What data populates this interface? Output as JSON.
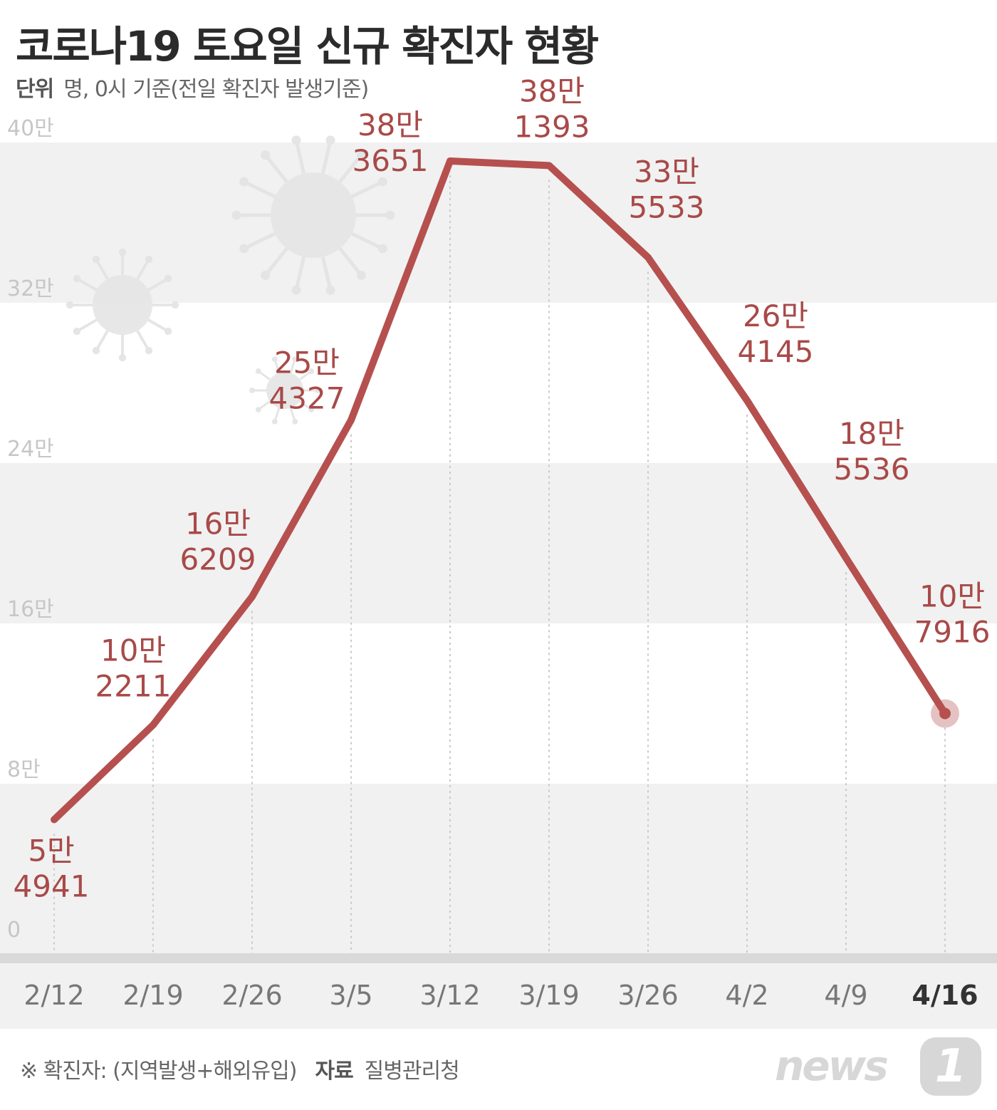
{
  "title": "코로나19 토요일 신규 확진자 현황",
  "unit_label": "단위",
  "unit_text": "명, 0시 기준(전일 확진자 발생기준)",
  "footer_note": "※ 확진자: (지역발생+해외유입)",
  "source_label": "자료",
  "source_text": "질병관리청",
  "logo": {
    "text": "news",
    "one": "1"
  },
  "colors": {
    "line": "#b5504f",
    "label": "#a84a48",
    "band": "#f1f1f1",
    "axis_bar": "#d9d9d9",
    "highlight": "#333333"
  },
  "chart_data": {
    "type": "line",
    "title": "코로나19 토요일 신규 확진자 현황",
    "xlabel": "",
    "ylabel": "",
    "categories": [
      "2/12",
      "2/19",
      "2/26",
      "3/5",
      "3/12",
      "3/19",
      "3/26",
      "4/2",
      "4/9",
      "4/16"
    ],
    "series": [
      {
        "values": [
          54941,
          102211,
          166209,
          254327,
          383651,
          381393,
          335533,
          264145,
          185536,
          107916
        ]
      }
    ],
    "value_labels": [
      [
        "5만",
        "4941"
      ],
      [
        "10만",
        "2211"
      ],
      [
        "16만",
        "6209"
      ],
      [
        "25만",
        "4327"
      ],
      [
        "38만",
        "3651"
      ],
      [
        "38만",
        "1393"
      ],
      [
        "33만",
        "5533"
      ],
      [
        "26만",
        "4145"
      ],
      [
        "18만",
        "5536"
      ],
      [
        "10만",
        "7916"
      ]
    ],
    "ylim": [
      0,
      400000
    ],
    "yticks": [
      0,
      80000,
      160000,
      240000,
      320000,
      400000
    ],
    "ytick_labels": [
      "0",
      "8만",
      "16만",
      "24만",
      "32만",
      "40만"
    ],
    "highlight_category": "4/16",
    "grid": "alternating bands"
  }
}
